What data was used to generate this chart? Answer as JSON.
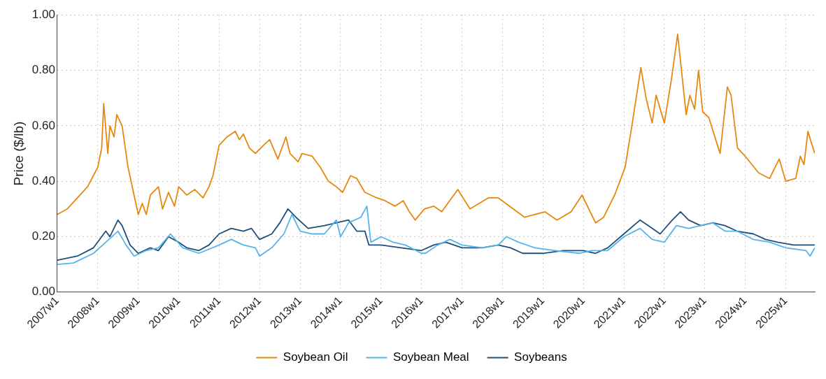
{
  "chart_data": {
    "type": "line",
    "ylabel": "Price ($/lb)",
    "xlim": [
      "2007-01-01",
      "2025-09-20"
    ],
    "xticks": [
      {
        "value": "2007-01-01",
        "label": "2007w1"
      },
      {
        "value": "2008-01-01",
        "label": "2008w1"
      },
      {
        "value": "2009-01-01",
        "label": "2009w1"
      },
      {
        "value": "2010-01-01",
        "label": "2010w1"
      },
      {
        "value": "2011-01-01",
        "label": "2011w1"
      },
      {
        "value": "2012-01-01",
        "label": "2012w1"
      },
      {
        "value": "2013-01-01",
        "label": "2013w1"
      },
      {
        "value": "2014-01-01",
        "label": "2014w1"
      },
      {
        "value": "2015-01-01",
        "label": "2015w1"
      },
      {
        "value": "2016-01-01",
        "label": "2016w1"
      },
      {
        "value": "2017-01-01",
        "label": "2017w1"
      },
      {
        "value": "2018-01-01",
        "label": "2018w1"
      },
      {
        "value": "2019-01-01",
        "label": "2019w1"
      },
      {
        "value": "2020-01-01",
        "label": "2020w1"
      },
      {
        "value": "2021-01-01",
        "label": "2021w1"
      },
      {
        "value": "2022-01-01",
        "label": "2022w1"
      },
      {
        "value": "2023-01-01",
        "label": "2023w1"
      },
      {
        "value": "2024-01-01",
        "label": "2024w1"
      },
      {
        "value": "2025-01-01",
        "label": "2025w1"
      }
    ],
    "ylim": [
      0,
      1
    ],
    "yticks": [
      {
        "value": 0,
        "label": "0.00"
      },
      {
        "value": 0.2,
        "label": "0.20"
      },
      {
        "value": 0.4,
        "label": "0.40"
      },
      {
        "value": 0.6,
        "label": "0.60"
      },
      {
        "value": 0.8,
        "label": "0.80"
      },
      {
        "value": 1,
        "label": "1.00"
      }
    ],
    "grid": true,
    "legend": "bottom",
    "marker": "none",
    "line_style": "solid",
    "series": [
      {
        "name": "Soybean Oil",
        "color": "#e8870e",
        "x": [
          "2007-01-01",
          "2007-04-01",
          "2007-07-02",
          "2007-10-01",
          "2008-01-01",
          "2008-02-06",
          "2008-02-24",
          "2008-04-01",
          "2008-04-20",
          "2008-05-27",
          "2008-06-21",
          "2008-08-08",
          "2008-10-01",
          "2008-11-24",
          "2009-01-01",
          "2009-02-06",
          "2009-03-14",
          "2009-04-20",
          "2009-07-02",
          "2009-08-08",
          "2009-10-01",
          "2009-11-24",
          "2010-01-01",
          "2010-03-14",
          "2010-05-27",
          "2010-08-08",
          "2010-10-01",
          "2010-11-06",
          "2011-01-01",
          "2011-03-14",
          "2011-05-27",
          "2011-07-02",
          "2011-08-08",
          "2011-10-01",
          "2011-11-24",
          "2012-02-06",
          "2012-04-01",
          "2012-06-14",
          "2012-08-26",
          "2012-10-01",
          "2012-12-13",
          "2013-01-19",
          "2013-04-20",
          "2013-07-02",
          "2013-09-13",
          "2013-11-24",
          "2014-01-19",
          "2014-04-01",
          "2014-05-27",
          "2014-08-08",
          "2014-11-24",
          "2015-02-06",
          "2015-05-08",
          "2015-07-20",
          "2015-09-13",
          "2015-11-06",
          "2016-01-27",
          "2016-04-20",
          "2016-07-02",
          "2016-11-24",
          "2017-03-14",
          "2017-08-26",
          "2017-11-24",
          "2018-07-20",
          "2019-01-19",
          "2019-05-08",
          "2019-09-13",
          "2019-12-20",
          "2020-04-20",
          "2020-07-02",
          "2020-10-09",
          "2021-01-12",
          "2021-03-14",
          "2021-06-03",
          "2021-07-20",
          "2021-09-13",
          "2021-10-19",
          "2022-01-01",
          "2022-03-07",
          "2022-05-01",
          "2022-07-17",
          "2022-08-19",
          "2022-10-01",
          "2022-11-06",
          "2022-12-13",
          "2023-02-06",
          "2023-05-19",
          "2023-07-24",
          "2023-08-26",
          "2023-10-23",
          "2024-01-01",
          "2024-05-01",
          "2024-08-08",
          "2024-11-03",
          "2025-01-01",
          "2025-04-01",
          "2025-05-12",
          "2025-06-14",
          "2025-07-20",
          "2025-08-19",
          "2025-09-20"
        ],
        "values": [
          0.28,
          0.3,
          0.34,
          0.38,
          0.45,
          0.52,
          0.68,
          0.5,
          0.6,
          0.56,
          0.64,
          0.6,
          0.45,
          0.35,
          0.28,
          0.32,
          0.28,
          0.35,
          0.38,
          0.3,
          0.36,
          0.31,
          0.38,
          0.35,
          0.37,
          0.34,
          0.38,
          0.42,
          0.53,
          0.56,
          0.58,
          0.55,
          0.57,
          0.52,
          0.5,
          0.53,
          0.55,
          0.48,
          0.56,
          0.5,
          0.47,
          0.5,
          0.49,
          0.45,
          0.4,
          0.38,
          0.36,
          0.42,
          0.41,
          0.36,
          0.34,
          0.33,
          0.31,
          0.33,
          0.29,
          0.26,
          0.3,
          0.31,
          0.29,
          0.37,
          0.3,
          0.34,
          0.34,
          0.27,
          0.29,
          0.26,
          0.29,
          0.35,
          0.25,
          0.27,
          0.35,
          0.45,
          0.6,
          0.81,
          0.7,
          0.61,
          0.71,
          0.61,
          0.77,
          0.93,
          0.64,
          0.71,
          0.66,
          0.8,
          0.65,
          0.63,
          0.5,
          0.74,
          0.71,
          0.52,
          0.49,
          0.43,
          0.41,
          0.48,
          0.4,
          0.41,
          0.49,
          0.46,
          0.58,
          0.54,
          0.5
        ]
      },
      {
        "name": "Soybean Meal",
        "color": "#56b4e9",
        "x": [
          "2007-01-01",
          "2007-05-27",
          "2007-11-24",
          "2008-03-14",
          "2008-07-02",
          "2008-09-13",
          "2008-11-24",
          "2009-03-14",
          "2009-07-02",
          "2009-10-19",
          "2010-02-06",
          "2010-07-02",
          "2011-01-01",
          "2011-04-20",
          "2011-08-08",
          "2011-11-24",
          "2012-01-01",
          "2012-04-20",
          "2012-08-08",
          "2012-10-19",
          "2013-01-01",
          "2013-04-20",
          "2013-08-08",
          "2013-11-24",
          "2014-01-01",
          "2014-03-14",
          "2014-07-02",
          "2014-08-26",
          "2014-10-01",
          "2015-01-01",
          "2015-04-20",
          "2015-08-08",
          "2016-01-01",
          "2016-02-06",
          "2016-05-27",
          "2016-09-13",
          "2017-01-01",
          "2017-07-02",
          "2017-11-24",
          "2018-02-06",
          "2018-05-27",
          "2018-10-19",
          "2019-04-20",
          "2019-11-24",
          "2020-03-14",
          "2020-08-08",
          "2021-01-01",
          "2021-05-27",
          "2021-09-13",
          "2022-01-01",
          "2022-04-20",
          "2022-08-08",
          "2022-11-24",
          "2023-03-14",
          "2023-07-02",
          "2023-10-19",
          "2024-03-14",
          "2024-08-08",
          "2025-01-01",
          "2025-07-02",
          "2025-08-08",
          "2025-09-20"
        ],
        "values": [
          0.1,
          0.105,
          0.14,
          0.18,
          0.22,
          0.17,
          0.13,
          0.15,
          0.16,
          0.21,
          0.16,
          0.14,
          0.17,
          0.19,
          0.17,
          0.16,
          0.13,
          0.16,
          0.21,
          0.28,
          0.22,
          0.21,
          0.21,
          0.26,
          0.2,
          0.25,
          0.27,
          0.31,
          0.18,
          0.2,
          0.18,
          0.17,
          0.14,
          0.14,
          0.17,
          0.19,
          0.17,
          0.16,
          0.17,
          0.2,
          0.18,
          0.16,
          0.15,
          0.14,
          0.15,
          0.15,
          0.2,
          0.23,
          0.19,
          0.18,
          0.24,
          0.23,
          0.24,
          0.25,
          0.22,
          0.22,
          0.19,
          0.18,
          0.16,
          0.15,
          0.13,
          0.16
        ]
      },
      {
        "name": "Soybeans",
        "color": "#1f4e79",
        "x": [
          "2007-01-01",
          "2007-07-02",
          "2007-11-24",
          "2008-03-14",
          "2008-04-20",
          "2008-07-02",
          "2008-08-08",
          "2008-10-19",
          "2009-01-01",
          "2009-04-20",
          "2009-07-02",
          "2009-10-01",
          "2010-01-01",
          "2010-03-14",
          "2010-07-02",
          "2010-10-01",
          "2011-01-01",
          "2011-04-20",
          "2011-08-08",
          "2011-10-19",
          "2012-01-01",
          "2012-04-20",
          "2012-07-02",
          "2012-09-13",
          "2012-11-24",
          "2013-03-14",
          "2013-08-08",
          "2013-11-24",
          "2014-03-14",
          "2014-05-27",
          "2014-08-08",
          "2014-09-13",
          "2015-01-01",
          "2015-07-02",
          "2016-01-01",
          "2016-04-20",
          "2016-08-08",
          "2017-01-01",
          "2017-07-02",
          "2017-11-24",
          "2018-03-14",
          "2018-07-02",
          "2019-01-01",
          "2019-07-02",
          "2020-01-01",
          "2020-04-20",
          "2020-08-08",
          "2021-01-01",
          "2021-05-27",
          "2021-08-08",
          "2021-11-24",
          "2022-03-14",
          "2022-05-27",
          "2022-08-08",
          "2022-11-24",
          "2023-03-14",
          "2023-07-02",
          "2023-10-19",
          "2024-03-14",
          "2024-07-02",
          "2024-10-19",
          "2025-03-14",
          "2025-07-02",
          "2025-09-20"
        ],
        "values": [
          0.115,
          0.13,
          0.16,
          0.22,
          0.2,
          0.26,
          0.24,
          0.17,
          0.14,
          0.16,
          0.15,
          0.2,
          0.18,
          0.16,
          0.15,
          0.17,
          0.21,
          0.23,
          0.22,
          0.23,
          0.19,
          0.21,
          0.25,
          0.3,
          0.27,
          0.23,
          0.24,
          0.25,
          0.26,
          0.22,
          0.22,
          0.17,
          0.17,
          0.16,
          0.15,
          0.17,
          0.18,
          0.16,
          0.16,
          0.17,
          0.16,
          0.14,
          0.14,
          0.15,
          0.15,
          0.14,
          0.16,
          0.21,
          0.26,
          0.24,
          0.21,
          0.26,
          0.29,
          0.26,
          0.24,
          0.25,
          0.24,
          0.22,
          0.21,
          0.19,
          0.18,
          0.17,
          0.17,
          0.17
        ]
      }
    ]
  }
}
